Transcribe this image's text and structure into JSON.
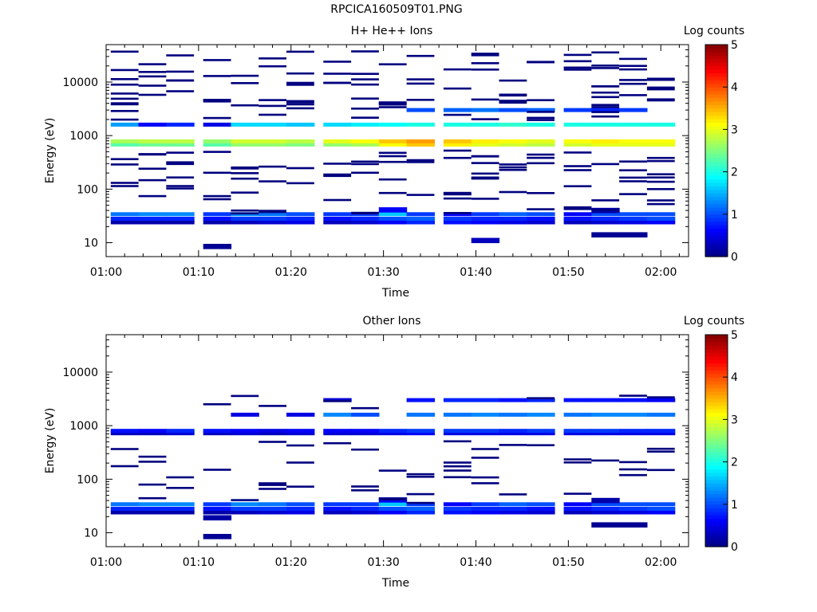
{
  "file_title": "RPCICA160509T01.PNG",
  "colors": {
    "cmap": [
      "#00007f",
      "#0000ff",
      "#007fff",
      "#00ffff",
      "#7fff7f",
      "#ffff00",
      "#ff7f00",
      "#ff0000",
      "#7f0000"
    ]
  },
  "chart_data": [
    {
      "type": "heatmap",
      "title": "H+ He++ Ions",
      "xlabel": "Time",
      "ylabel": "Energy (eV)",
      "xlim": [
        "01:00",
        "02:03"
      ],
      "x_ticks": [
        "01:00",
        "01:10",
        "01:20",
        "01:30",
        "01:40",
        "01:50",
        "02:00"
      ],
      "ylim": [
        5.5,
        50000
      ],
      "yscale": "log",
      "y_ticks": [
        "10",
        "100",
        "1000",
        "10000"
      ],
      "colorbar": {
        "label": "Log counts",
        "range": [
          0,
          5
        ],
        "ticks": [
          "0",
          "1",
          "2",
          "3",
          "4",
          "5"
        ]
      },
      "time_bins": [
        "01:02",
        "01:05",
        "01:08",
        "01:12",
        "01:15",
        "01:18",
        "01:21",
        "01:25",
        "01:28",
        "01:31",
        "01:34",
        "01:38",
        "01:41",
        "01:44",
        "01:47",
        "01:51",
        "01:54",
        "01:57",
        "02:00"
      ],
      "layers": [
        {
          "energy": 24,
          "values": [
            0.2,
            0.2,
            0.2,
            0.2,
            0.3,
            0.4,
            0.5,
            0.3,
            0.4,
            0.6,
            0.8,
            0.7,
            0.6,
            0.5,
            0.4,
            0.3,
            0.4,
            0.5,
            0.6
          ]
        },
        {
          "energy": 28,
          "values": [
            0.8,
            0.8,
            0.8,
            0.7,
            0.9,
            0.9,
            0.8,
            0.7,
            0.8,
            1.0,
            1.1,
            0.9,
            0.8,
            0.8,
            0.7,
            0.7,
            0.8,
            0.9,
            1.0
          ]
        },
        {
          "energy": 34,
          "values": [
            1.2,
            1.3,
            1.3,
            0.9,
            1.3,
            1.2,
            1.0,
            0.9,
            0.9,
            1.6,
            0.9,
            0.6,
            0.9,
            1.1,
            1.0,
            0.6,
            1.0,
            1.0,
            1.0
          ]
        },
        {
          "energy": 680,
          "values": [
            2.3,
            2.4,
            2.4,
            2.3,
            2.6,
            2.6,
            2.5,
            2.6,
            2.7,
            3.1,
            3.4,
            3.2,
            3.0,
            2.9,
            2.8,
            2.9,
            3.0,
            3.0,
            3.0
          ]
        },
        {
          "energy": 780,
          "values": [
            2.7,
            2.8,
            2.8,
            2.6,
            2.9,
            2.9,
            2.8,
            3.0,
            3.1,
            3.4,
            3.6,
            3.4,
            3.2,
            3.1,
            3.0,
            3.1,
            3.2,
            3.1,
            3.1
          ]
        },
        {
          "energy": 1600,
          "values": [
            1.4,
            0.6,
            0.8,
            0.5,
            1.7,
            1.7,
            1.6,
            1.7,
            1.8,
            1.9,
            2.0,
            2.0,
            2.0,
            2.1,
            2.0,
            2.0,
            2.0,
            2.0,
            2.0
          ]
        },
        {
          "energy": 3000,
          "values": [
            0.0,
            0.0,
            0.0,
            0.0,
            0.0,
            0.0,
            0.0,
            0.0,
            0.0,
            0.0,
            1.0,
            1.1,
            1.2,
            1.0,
            1.1,
            0.9,
            0.8,
            0.9,
            0.0
          ]
        }
      ],
      "low_cells": [
        {
          "bin": 3,
          "energy": 8.5,
          "value": 0.1
        },
        {
          "bin": 12,
          "energy": 11,
          "value": 0.3
        },
        {
          "bin": 16,
          "energy": 14,
          "value": 0.1
        },
        {
          "bin": 17,
          "energy": 14,
          "value": 0.1
        },
        {
          "bin": 16,
          "energy": 40,
          "value": 0.2
        },
        {
          "bin": 9,
          "energy": 41,
          "value": 0.6
        }
      ]
    },
    {
      "type": "heatmap",
      "title": "Other Ions",
      "xlabel": "Time",
      "ylabel": "Energy (eV)",
      "xlim": [
        "01:00",
        "02:03"
      ],
      "x_ticks": [
        "01:00",
        "01:10",
        "01:20",
        "01:30",
        "01:40",
        "01:50",
        "02:00"
      ],
      "ylim": [
        5.5,
        50000
      ],
      "yscale": "log",
      "y_ticks": [
        "10",
        "100",
        "1000",
        "10000"
      ],
      "colorbar": {
        "label": "Log counts",
        "range": [
          0,
          5
        ],
        "ticks": [
          "0",
          "1",
          "2",
          "3",
          "4",
          "5"
        ]
      },
      "time_bins": [
        "01:02",
        "01:05",
        "01:08",
        "01:12",
        "01:15",
        "01:18",
        "01:21",
        "01:25",
        "01:28",
        "01:31",
        "01:34",
        "01:38",
        "01:41",
        "01:44",
        "01:47",
        "01:51",
        "01:54",
        "01:57",
        "02:00"
      ],
      "layers": [
        {
          "energy": 24,
          "values": [
            0.2,
            0.2,
            0.2,
            0.2,
            0.3,
            0.4,
            0.5,
            0.3,
            0.4,
            0.6,
            0.8,
            0.7,
            0.6,
            0.5,
            0.4,
            0.3,
            0.4,
            0.5,
            0.6
          ]
        },
        {
          "energy": 28,
          "values": [
            0.8,
            0.8,
            0.8,
            0.7,
            0.9,
            0.9,
            0.8,
            0.7,
            0.8,
            1.0,
            1.1,
            0.9,
            0.8,
            0.8,
            0.7,
            0.7,
            0.8,
            0.9,
            1.0
          ]
        },
        {
          "energy": 34,
          "values": [
            1.2,
            1.3,
            1.3,
            0.9,
            1.3,
            1.2,
            1.0,
            0.9,
            0.9,
            1.6,
            0.9,
            0.6,
            0.9,
            1.1,
            1.0,
            0.6,
            1.0,
            1.0,
            1.0
          ]
        },
        {
          "energy": 720,
          "values": [
            0.3,
            0.3,
            0.4,
            0.3,
            0.4,
            0.3,
            0.4,
            0.4,
            0.4,
            0.5,
            0.6,
            0.5,
            0.5,
            0.5,
            0.5,
            0.5,
            0.5,
            0.5,
            0.5
          ]
        },
        {
          "energy": 800,
          "values": [
            0.7,
            0.6,
            0.8,
            0.7,
            0.6,
            0.5,
            0.6,
            0.6,
            0.6,
            0.8,
            0.9,
            0.9,
            0.9,
            0.8,
            0.9,
            0.9,
            0.9,
            0.8,
            0.8
          ]
        },
        {
          "energy": 1600,
          "values": [
            0.0,
            0.0,
            0.0,
            0.0,
            0.5,
            0.0,
            0.5,
            1.3,
            1.0,
            0.0,
            1.2,
            1.2,
            1.3,
            1.2,
            1.3,
            1.2,
            1.3,
            1.3,
            1.2
          ]
        },
        {
          "energy": 3000,
          "values": [
            0.0,
            0.0,
            0.0,
            0.0,
            0.0,
            0.0,
            0.0,
            0.4,
            0.0,
            0.0,
            0.7,
            0.8,
            0.8,
            0.7,
            0.8,
            0.7,
            0.7,
            0.7,
            0.6
          ]
        }
      ],
      "low_cells": [
        {
          "bin": 3,
          "energy": 8.5,
          "value": 0.1
        },
        {
          "bin": 3,
          "energy": 19,
          "value": 0.2
        },
        {
          "bin": 16,
          "energy": 14,
          "value": 0.1
        },
        {
          "bin": 17,
          "energy": 14,
          "value": 0.1
        },
        {
          "bin": 16,
          "energy": 40,
          "value": 0.2
        },
        {
          "bin": 9,
          "energy": 41,
          "value": 0.6
        }
      ]
    }
  ]
}
